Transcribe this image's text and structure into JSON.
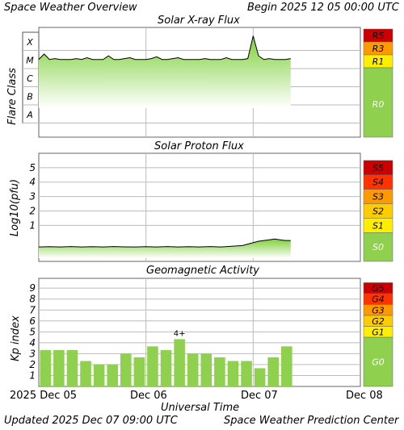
{
  "header": {
    "title": "Space Weather Overview",
    "begin": "Begin 2025 12 05 00:00 UTC"
  },
  "footer": {
    "updated": "Updated 2025 Dec 07 09:00 UTC",
    "center": "Space Weather Prediction Center",
    "xaxis_title": "Universal Time",
    "x_ticks": [
      "2025 Dec 05",
      "Dec 06",
      "Dec 07",
      "Dec 08"
    ]
  },
  "colors": {
    "plot_bg": "#ffffff",
    "grid": "#bbbbbb",
    "bar": "#8fd14f",
    "green_band": "#8fd14f",
    "level1": "#ffee00",
    "level2": "#ffcc00",
    "level3": "#ff9900",
    "level4": "#ff3300",
    "level5": "#cc0000"
  },
  "chart_data": [
    {
      "type": "line",
      "title": "Solar X-ray Flux",
      "ylabel": "Flare Class",
      "y_classes": [
        "A",
        "B",
        "C",
        "M",
        "X"
      ],
      "scale_labels": [
        "R5",
        "R3",
        "R1",
        "R0"
      ],
      "x_range_days": [
        0,
        3
      ],
      "series": [
        {
          "x": [
            0,
            0.05,
            0.1,
            0.15,
            0.2,
            0.25,
            0.3,
            0.35,
            0.4,
            0.45,
            0.5,
            0.55,
            0.6,
            0.65,
            0.7,
            0.75,
            0.8,
            0.85,
            0.9,
            0.95,
            1.0,
            1.05,
            1.1,
            1.15,
            1.2,
            1.25,
            1.3,
            1.35,
            1.4,
            1.45,
            1.5,
            1.55,
            1.6,
            1.65,
            1.7,
            1.75,
            1.8,
            1.85,
            1.9,
            1.95,
            2.0,
            2.05,
            2.1,
            2.15,
            2.2,
            2.25,
            2.3,
            2.35
          ],
          "y": [
            1.0,
            1.3,
            1.0,
            1.05,
            1.0,
            1.0,
            1.0,
            1.05,
            1.0,
            1.1,
            1.0,
            1.0,
            1.0,
            1.2,
            1.0,
            1.0,
            1.05,
            1.1,
            1.0,
            1.0,
            1.0,
            1.05,
            1.15,
            1.0,
            1.0,
            1.05,
            1.1,
            1.0,
            1.0,
            1.0,
            1.0,
            1.05,
            1.0,
            1.0,
            1.0,
            1.1,
            1.0,
            1.0,
            1.0,
            1.05,
            2.3,
            1.2,
            1.0,
            1.05,
            1.0,
            1.0,
            1.0,
            1.05
          ]
        }
      ]
    },
    {
      "type": "line",
      "title": "Solar Proton Flux",
      "ylabel": "Log10(pfu)",
      "ylim": [
        -1.5,
        6
      ],
      "y_ticks": [
        1,
        2,
        3,
        4,
        5
      ],
      "scale_labels": [
        "S5",
        "S4",
        "S3",
        "S2",
        "S1",
        "S0"
      ],
      "x_range_days": [
        0,
        3
      ],
      "series": [
        {
          "x": [
            0,
            0.1,
            0.2,
            0.3,
            0.4,
            0.5,
            0.6,
            0.7,
            0.8,
            0.9,
            1.0,
            1.1,
            1.2,
            1.3,
            1.4,
            1.5,
            1.6,
            1.7,
            1.8,
            1.9,
            2.0,
            2.05,
            2.1,
            2.15,
            2.2,
            2.25,
            2.3,
            2.35
          ],
          "y": [
            -0.5,
            -0.48,
            -0.5,
            -0.47,
            -0.5,
            -0.48,
            -0.5,
            -0.47,
            -0.49,
            -0.5,
            -0.48,
            -0.5,
            -0.47,
            -0.5,
            -0.48,
            -0.5,
            -0.47,
            -0.5,
            -0.45,
            -0.4,
            -0.2,
            -0.1,
            -0.05,
            0.0,
            0.05,
            0.0,
            -0.05,
            -0.05
          ]
        }
      ]
    },
    {
      "type": "bar",
      "title": "Geomagnetic Activity",
      "ylabel": "Kp index",
      "ylim": [
        0,
        9.9
      ],
      "y_ticks": [
        1,
        2,
        3,
        4,
        5,
        6,
        7,
        8,
        9
      ],
      "scale_labels": [
        "G5",
        "G4",
        "G3",
        "G2",
        "G1",
        "G0"
      ],
      "bar_width_days": 0.125,
      "values": [
        3.33,
        3.33,
        3.33,
        2.33,
        2.0,
        2.0,
        3.0,
        2.67,
        3.67,
        3.33,
        4.33,
        3.0,
        3.0,
        2.67,
        2.33,
        2.33,
        1.67,
        2.67,
        3.67
      ],
      "annotations": [
        {
          "index": 10,
          "text": "4+"
        }
      ]
    }
  ]
}
